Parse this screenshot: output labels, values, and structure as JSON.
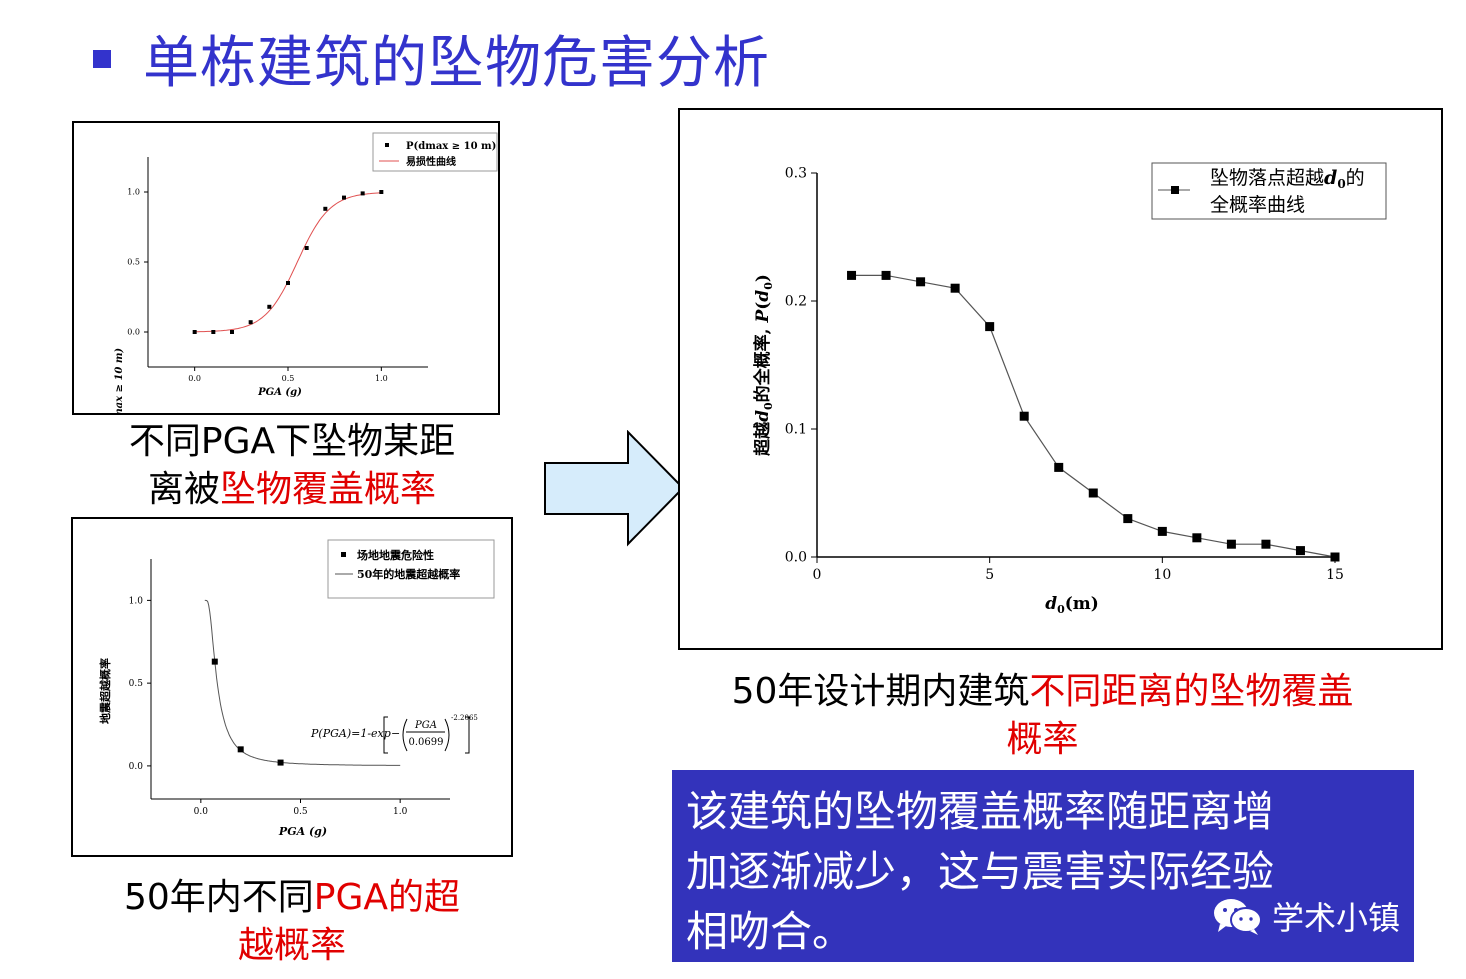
{
  "slide": {
    "title": "单栋建筑的坠物危害分析"
  },
  "captions": {
    "top_left_black": "不同PGA下坠物某距",
    "top_left_black2": "离被",
    "top_left_red": "坠物覆盖概率",
    "bottom_left_black": "50年内不同",
    "bottom_left_red": "PGA的超",
    "bottom_left_red2": "越概率",
    "right_black": "50年设计期内建筑",
    "right_red": "不同距离的坠物覆盖",
    "right_red2": "概率"
  },
  "conclusion": {
    "line1": "该建筑的坠物覆盖概率随距离增",
    "line2": "加逐渐减少，这与震害实际经验",
    "line3": "相吻合。"
  },
  "watermark": {
    "text": "学术小镇",
    "icon": "wechat-icon"
  },
  "colors": {
    "title": "#3333cc",
    "highlight": "#e00000",
    "conclusion_bg": "#3333bb",
    "fit_curve": "#e05050"
  },
  "chart_data": [
    {
      "id": "fragility",
      "type": "scatter",
      "xlabel": "PGA (g)",
      "ylabel": "P(dmax ≥ 10 m)",
      "xlim": [
        -0.25,
        1.25
      ],
      "ylim": [
        -0.25,
        1.25
      ],
      "xticks": [
        "0.0",
        "0.5",
        "1.0"
      ],
      "yticks": [
        "0.0",
        "0.5",
        "1.0"
      ],
      "legend_position": "top-right",
      "series": [
        {
          "name": "P(dmax ≥ 10 m)",
          "marker": "square",
          "x": [
            0.0,
            0.1,
            0.2,
            0.3,
            0.4,
            0.5,
            0.6,
            0.7,
            0.8,
            0.9,
            1.0
          ],
          "y": [
            0.0,
            0.0,
            0.0,
            0.07,
            0.18,
            0.35,
            0.6,
            0.88,
            0.96,
            0.99,
            1.0
          ]
        },
        {
          "name": "易损性曲线",
          "line": "smooth",
          "color": "#e05050"
        }
      ]
    },
    {
      "id": "hazard",
      "type": "scatter",
      "xlabel": "PGA (g)",
      "ylabel": "地震超越概率",
      "xlim": [
        -0.25,
        1.25
      ],
      "ylim": [
        -0.2,
        1.25
      ],
      "xticks": [
        "0.0",
        "0.5",
        "1.0"
      ],
      "yticks": [
        "0.0",
        "0.5",
        "1.0"
      ],
      "legend_position": "top-right",
      "annotation": "P(PGA)=1-exp[-(PGA/0.0699)^-2.2065]",
      "series": [
        {
          "name": "场地地震危险性",
          "marker": "square",
          "x": [
            0.07,
            0.2,
            0.4
          ],
          "y": [
            0.63,
            0.1,
            0.02
          ]
        },
        {
          "name": "50年的地震超越概率",
          "line": "smooth",
          "color": "#555555"
        }
      ]
    },
    {
      "id": "coverage",
      "type": "line",
      "xlabel": "d0(m)",
      "ylabel": "超越d0的全概率, P(d0)",
      "xlim": [
        0,
        15
      ],
      "ylim": [
        0,
        0.3
      ],
      "xticks": [
        "0",
        "5",
        "10",
        "15"
      ],
      "yticks": [
        "0.0",
        "0.1",
        "0.2",
        "0.3"
      ],
      "legend_position": "top-right",
      "series": [
        {
          "name": "坠物落点超越d0的全概率曲线",
          "marker": "square",
          "x": [
            1,
            2,
            3,
            4,
            5,
            6,
            7,
            8,
            9,
            10,
            11,
            12,
            13,
            14,
            15
          ],
          "y": [
            0.22,
            0.22,
            0.215,
            0.21,
            0.18,
            0.11,
            0.07,
            0.05,
            0.03,
            0.02,
            0.015,
            0.01,
            0.01,
            0.005,
            0.0
          ]
        }
      ]
    }
  ]
}
